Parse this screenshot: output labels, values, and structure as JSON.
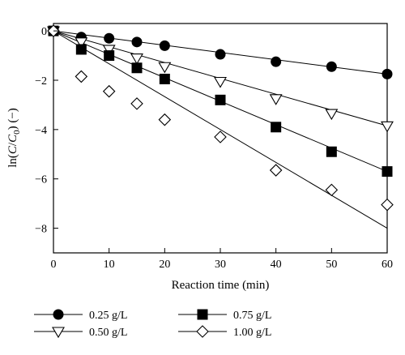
{
  "chart_data": {
    "type": "scatter",
    "xlabel": "Reaction time (min)",
    "ylabel_parts": {
      "prefix": "ln(",
      "c": "C",
      "slash": "/",
      "c0": "C",
      "sub": "0",
      "suffix": ") (−)"
    },
    "xlim": [
      0,
      60
    ],
    "ylim": [
      -9,
      0.3
    ],
    "x_ticks": [
      0,
      10,
      20,
      30,
      40,
      50,
      60
    ],
    "y_ticks": [
      0,
      -2,
      -4,
      -6,
      -8
    ],
    "y_tick_labels": [
      "0",
      "−2",
      "−4",
      "−6",
      "−8"
    ],
    "grid": false,
    "legend_position": "bottom",
    "series": [
      {
        "name": "0.25 g/L",
        "marker": "filled-circle",
        "x": [
          0,
          5,
          10,
          15,
          20,
          30,
          40,
          50,
          60
        ],
        "y": [
          0,
          -0.25,
          -0.3,
          -0.45,
          -0.6,
          -0.95,
          -1.25,
          -1.45,
          -1.75
        ],
        "fit_line": [
          [
            0,
            0
          ],
          [
            60,
            -1.75
          ]
        ]
      },
      {
        "name": "0.50 g/L",
        "marker": "open-triangle-down",
        "x": [
          0,
          5,
          10,
          15,
          20,
          30,
          40,
          50,
          60
        ],
        "y": [
          0,
          -0.45,
          -0.75,
          -1.1,
          -1.45,
          -2.05,
          -2.75,
          -3.35,
          -3.85
        ],
        "fit_line": [
          [
            0,
            0
          ],
          [
            60,
            -3.85
          ]
        ]
      },
      {
        "name": "0.75 g/L",
        "marker": "filled-square",
        "x": [
          0,
          5,
          10,
          15,
          20,
          30,
          40,
          50,
          60
        ],
        "y": [
          0,
          -0.75,
          -1.0,
          -1.5,
          -1.95,
          -2.8,
          -3.9,
          -4.9,
          -5.7
        ],
        "fit_line": [
          [
            0,
            0
          ],
          [
            60,
            -5.7
          ]
        ]
      },
      {
        "name": "1.00 g/L",
        "marker": "open-diamond",
        "x": [
          0,
          5,
          10,
          15,
          20,
          30,
          40,
          50,
          60
        ],
        "y": [
          0,
          -1.85,
          -2.45,
          -2.95,
          -3.6,
          -4.3,
          -5.65,
          -6.45,
          -7.05
        ],
        "fit_line": [
          [
            0,
            0
          ],
          [
            60,
            -8.0
          ]
        ]
      }
    ]
  }
}
